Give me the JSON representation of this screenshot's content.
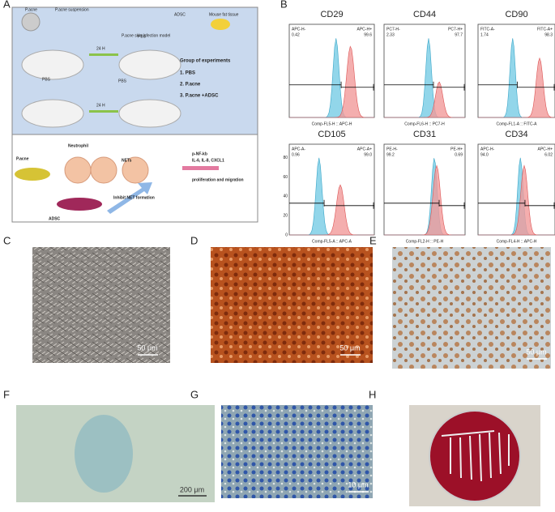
{
  "panel_labels": [
    "A",
    "B",
    "C",
    "D",
    "E",
    "F",
    "G",
    "H"
  ],
  "schematic": {
    "top": [
      "P.acne",
      "P.acne suspension",
      "ADSC",
      "Mouse fat tissue",
      "P.acne skin infection model",
      "24 H",
      "PBS",
      "24 H",
      "PBS",
      "PBS"
    ],
    "groups_title": "Group of experiments",
    "groups": [
      "1. PBS",
      "2. P.acne",
      "3. P.acne +ADSC"
    ],
    "bottom": [
      "P.acne",
      "Neutrophil",
      "NETs",
      "p-NF-kb",
      "IL-6, IL-8, CXCL1",
      "proliferation and migration",
      "ADSC",
      "Inhibit NET formation"
    ]
  },
  "flow": [
    {
      "marker": "CD29",
      "neg_gate": "APC-H-",
      "neg_pct": "0.42",
      "pos_gate": "APC-H+",
      "pos_pct": "99.6",
      "x_label": "Comp-FL5-H :: APC-H"
    },
    {
      "marker": "CD44",
      "neg_gate": "PC7-H-",
      "neg_pct": "2.33",
      "pos_gate": "PC7-H+",
      "pos_pct": "97.7",
      "x_label": "Comp-FL6-H :: PC7-H"
    },
    {
      "marker": "CD90",
      "neg_gate": "FITC-A-",
      "neg_pct": "1.74",
      "pos_gate": "FITC-A+",
      "pos_pct": "98.3",
      "x_label": "Comp-FL1-A :: FITC-A"
    },
    {
      "marker": "CD105",
      "neg_gate": "APC-A-",
      "neg_pct": "0.96",
      "pos_gate": "APC-A+",
      "pos_pct": "99.0",
      "x_label": "Comp-FL5-A :: APC-A",
      "yticks": [
        "0",
        "20",
        "40",
        "60",
        "80"
      ]
    },
    {
      "marker": "CD31",
      "neg_gate": "PE-H-",
      "neg_pct": "99.2",
      "pos_gate": "PE-H+",
      "pos_pct": "0.69",
      "x_label": "Comp-FL2-H :: PE-H"
    },
    {
      "marker": "CD34",
      "neg_gate": "APC-H-",
      "neg_pct": "94.0",
      "pos_gate": "APC-H+",
      "pos_pct": "6.02",
      "x_label": "Comp-FL4-H :: APC-H"
    }
  ],
  "scale_bars": [
    "50 μm",
    "50 μm",
    "50 μm",
    "200 μm",
    "10 μm"
  ]
}
